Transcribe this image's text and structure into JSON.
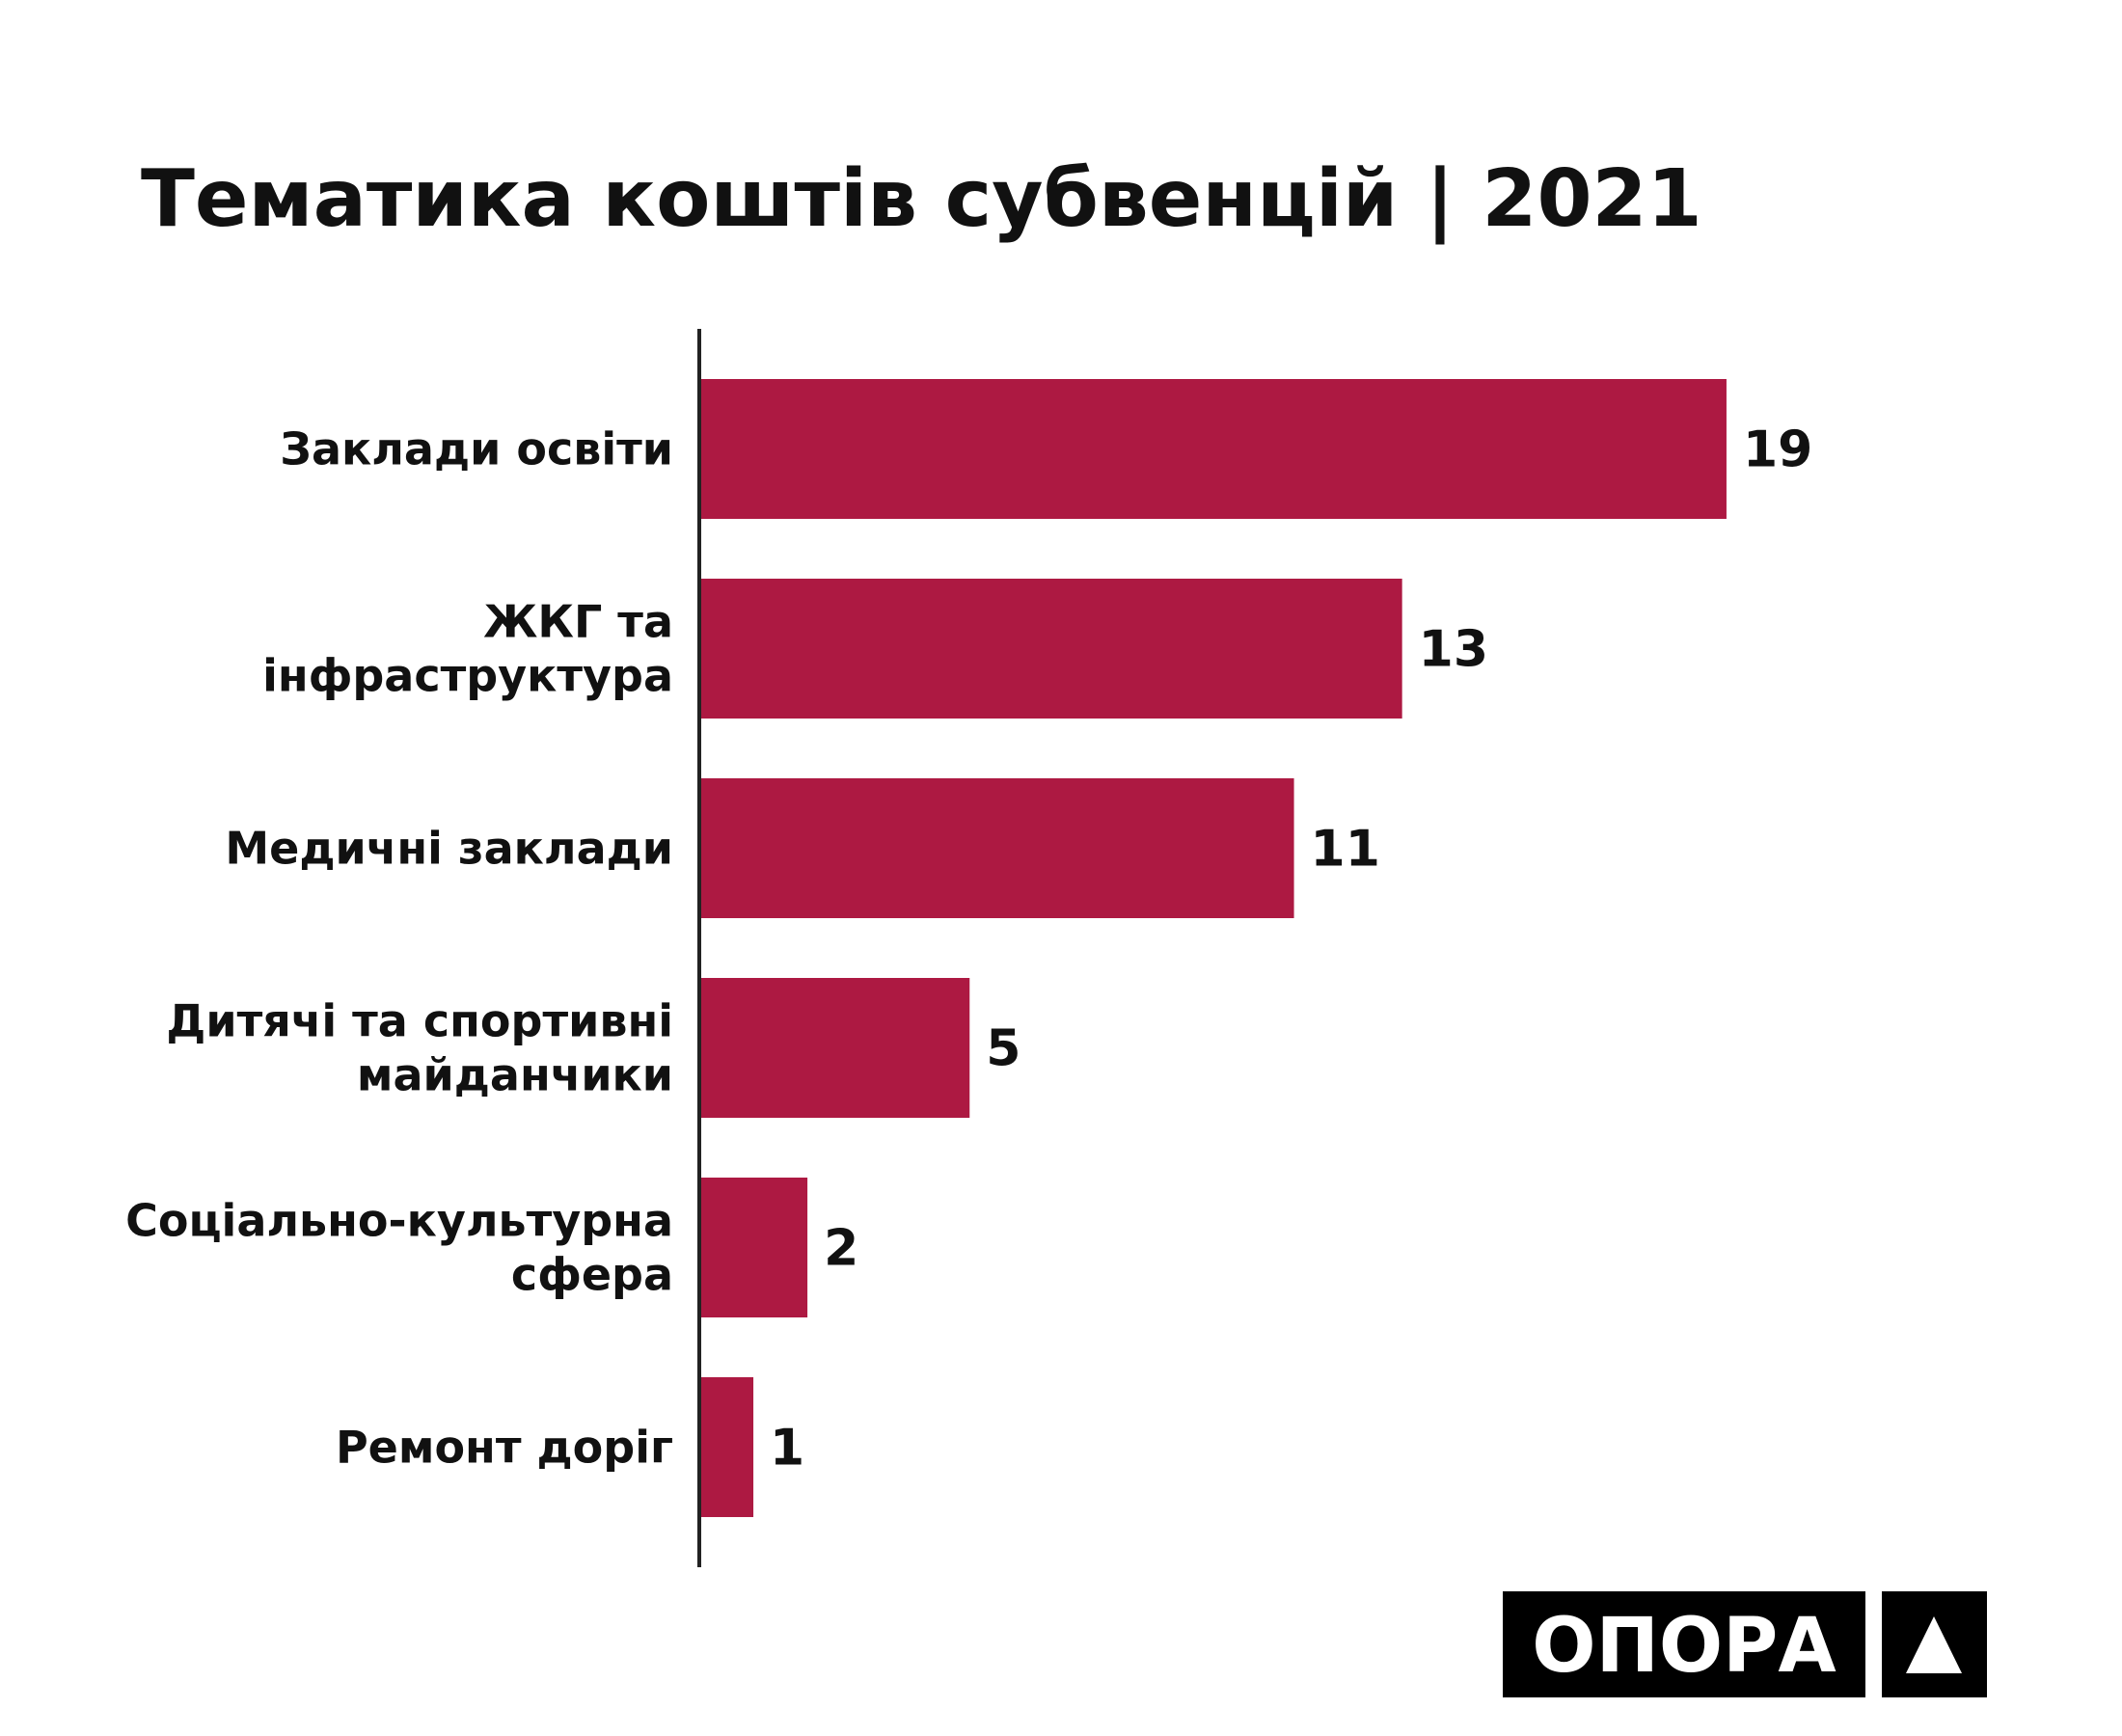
{
  "chart_data": {
    "type": "bar",
    "orientation": "horizontal",
    "title": "Тематика коштів субвенцій | 2021",
    "categories": [
      "Заклади освіти",
      "ЖКГ та\nінфраструктура",
      "Медичні заклади",
      "Дитячі та спортивні\nмайданчики",
      "Соціально-культурна\nсфера",
      "Ремонт доріг"
    ],
    "values": [
      19,
      13,
      11,
      5,
      2,
      1
    ],
    "color": "#ad1942",
    "xlim": [
      0,
      20
    ],
    "logo": "ОПОРА"
  }
}
